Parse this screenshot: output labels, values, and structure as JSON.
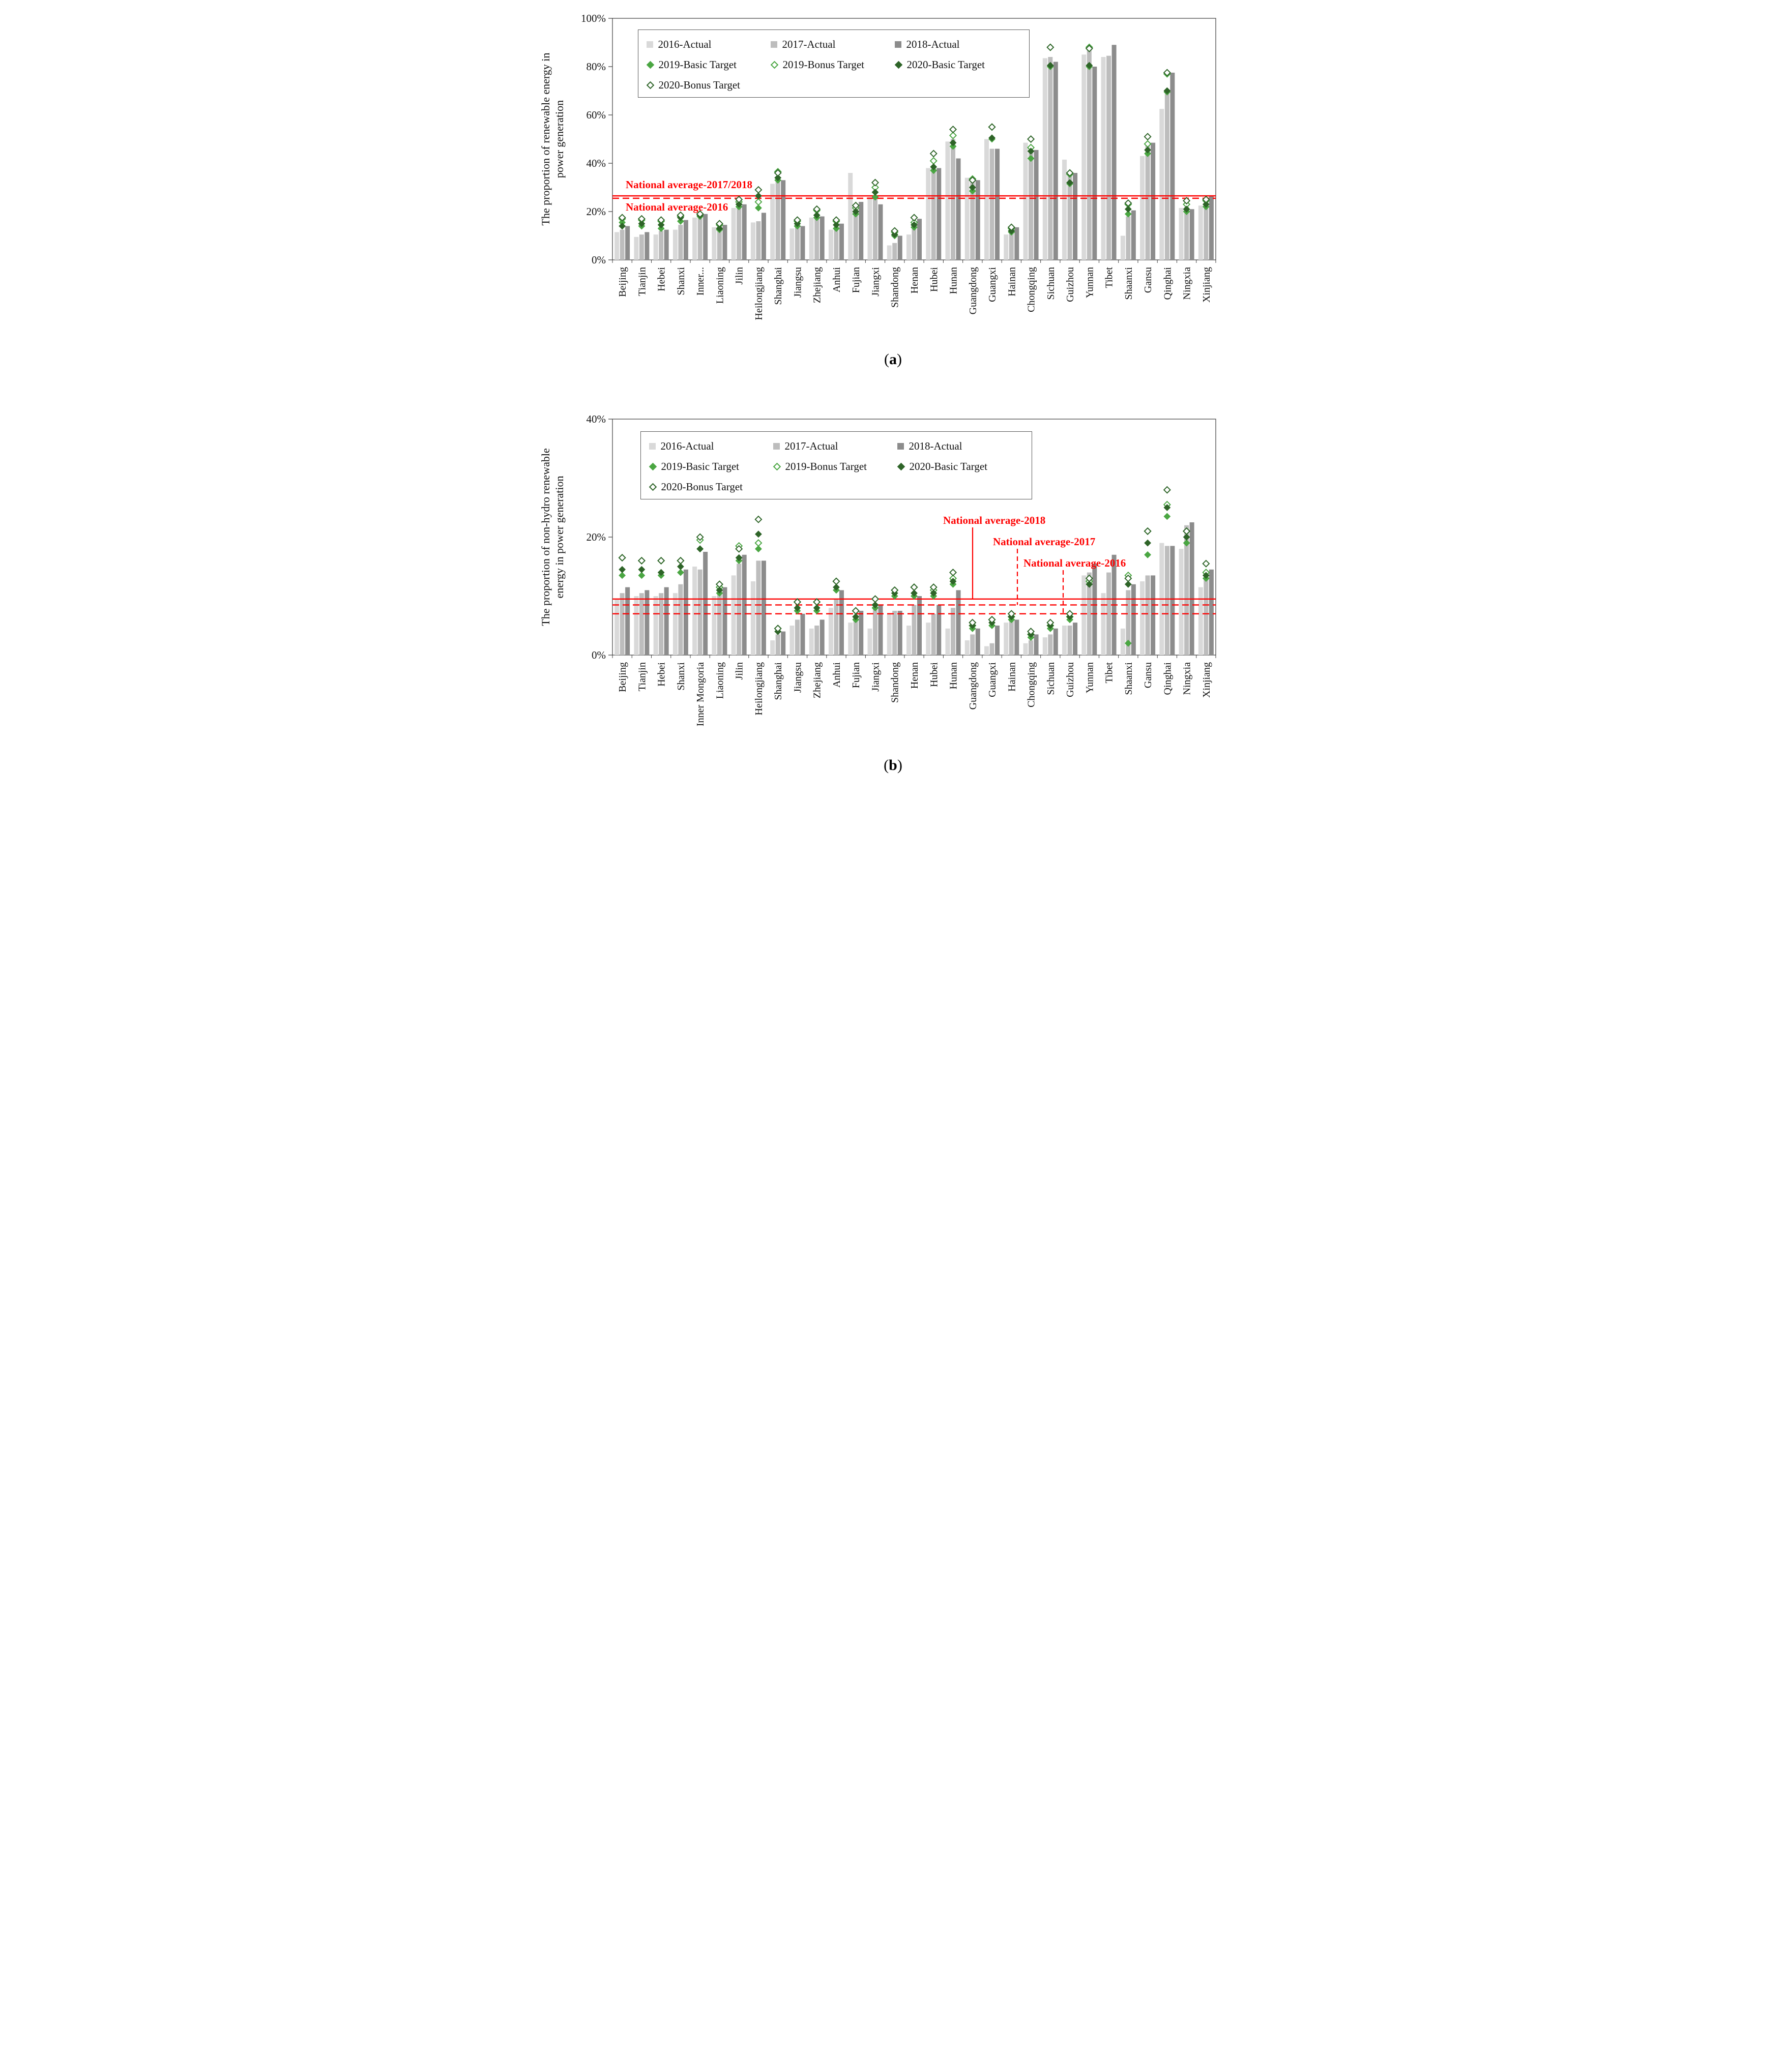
{
  "colors": {
    "bar2016": "#d9d9d9",
    "bar2017": "#bdbdbd",
    "bar2018": "#8c8c8c",
    "green2019": "#4aa642",
    "green2020": "#2e6428",
    "red": "#fe0000",
    "axis": "#3c3c3c"
  },
  "legend_items": [
    {
      "label": "2016-Actual",
      "marker": "bar",
      "color_key": "bar2016"
    },
    {
      "label": "2017-Actual",
      "marker": "bar",
      "color_key": "bar2017"
    },
    {
      "label": "2018-Actual",
      "marker": "bar",
      "color_key": "bar2018"
    },
    {
      "label": "2019-Basic Target",
      "marker": "diamond",
      "filled": true,
      "color_key": "green2019"
    },
    {
      "label": "2019-Bonus Target",
      "marker": "diamond",
      "filled": false,
      "color_key": "green2019"
    },
    {
      "label": "2020-Basic Target",
      "marker": "diamond",
      "filled": true,
      "color_key": "green2020"
    },
    {
      "label": "2020-Bonus Target",
      "marker": "diamond",
      "filled": false,
      "color_key": "green2020"
    }
  ],
  "chart_data": [
    {
      "id": "a",
      "type": "bar",
      "caption_letter": "a",
      "ylabel_lines": [
        "The proportion of renewable energy in",
        "power generation"
      ],
      "ylim": [
        0,
        100
      ],
      "yticks": [
        0,
        20,
        40,
        60,
        80,
        100
      ],
      "ytick_labels": [
        "0%",
        "20%",
        "40%",
        "60%",
        "80%",
        "100%"
      ],
      "categories": [
        "Beijing",
        "Tianjin",
        "Hebei",
        "Shanxi",
        "Inner...",
        "Liaoning",
        "Jilin",
        "Heilongjiang",
        "Shanghai",
        "Jiangsu",
        "Zhejiang",
        "Anhui",
        "Fujian",
        "Jiangxi",
        "Shandong",
        "Henan",
        "Hubei",
        "Hunan",
        "Guangdong",
        "Guangxi",
        "Hainan",
        "Chongqing",
        "Sichuan",
        "Guizhou",
        "Yunnan",
        "Tibet",
        "Shaanxi",
        "Gansu",
        "Qinghai",
        "Ningxia",
        "Xinjiang"
      ],
      "series": [
        {
          "name": "2016-Actual",
          "kind": "bar",
          "color_key": "bar2016",
          "values": [
            11.5,
            9.5,
            10.5,
            12.5,
            17.5,
            13.5,
            21.5,
            15.5,
            31.5,
            13,
            17.5,
            12.5,
            36,
            26,
            6,
            10.5,
            38,
            49,
            34,
            50,
            10.5,
            48.5,
            83.5,
            41.5,
            85,
            84,
            10,
            43,
            62.5,
            21.5,
            22.5
          ]
        },
        {
          "name": "2017-Actual",
          "kind": "bar",
          "color_key": "bar2017",
          "values": [
            12.5,
            10.5,
            12,
            14.5,
            18.5,
            14.5,
            22,
            16,
            32.5,
            13.5,
            18,
            14.5,
            22,
            25.5,
            7,
            16,
            39,
            50,
            33.5,
            46,
            12,
            44.5,
            84,
            35.5,
            87,
            84.5,
            18,
            48,
            70,
            22,
            23.5
          ]
        },
        {
          "name": "2018-Actual",
          "kind": "bar",
          "color_key": "bar2018",
          "values": [
            14,
            11.5,
            12.5,
            16.5,
            19,
            14.5,
            23,
            19.5,
            33,
            14,
            18,
            15,
            24,
            23,
            10,
            17,
            38,
            42,
            33,
            46,
            13.5,
            45.5,
            82,
            36,
            80,
            89,
            20.5,
            48.5,
            77.5,
            21,
            26.5
          ]
        },
        {
          "name": "2019-Basic Target",
          "kind": "diamond",
          "filled": true,
          "color_key": "green2019",
          "values": [
            15.5,
            14,
            13,
            16,
            18,
            12.5,
            22,
            21.5,
            33,
            14,
            17.5,
            13,
            19,
            26,
            10,
            13.5,
            37,
            47,
            28.5,
            50,
            11.5,
            42,
            80,
            31.5,
            80,
            null,
            19,
            44,
            69.5,
            20,
            22
          ]
        },
        {
          "name": "2019-Bonus Target",
          "kind": "diamond",
          "filled": false,
          "color_key": "green2019",
          "values": [
            17,
            16.5,
            16,
            18,
            19,
            14.5,
            24,
            24,
            36.5,
            16,
            20.5,
            16,
            21.5,
            30,
            11.5,
            15.5,
            41,
            51.5,
            33.5,
            55,
            13,
            46.5,
            88,
            35.5,
            88,
            null,
            23,
            48,
            77,
            23,
            24.5
          ]
        },
        {
          "name": "2020-Basic Target",
          "kind": "diamond",
          "filled": true,
          "color_key": "green2020",
          "values": [
            14,
            15,
            14.5,
            17.5,
            18.5,
            13,
            23,
            26.5,
            34,
            15,
            18.5,
            14.5,
            20,
            28,
            10.5,
            14.5,
            38.5,
            48.5,
            30,
            50.5,
            12,
            45,
            80.5,
            32,
            80.5,
            null,
            21,
            45.5,
            70,
            21,
            23
          ]
        },
        {
          "name": "2020-Bonus Target",
          "kind": "diamond",
          "filled": false,
          "color_key": "green2020",
          "values": [
            17.5,
            17,
            16.5,
            18.5,
            19,
            15,
            25,
            29,
            36,
            16.5,
            21,
            16.5,
            22.5,
            32,
            12,
            17.5,
            44,
            54,
            33,
            55,
            13.5,
            50,
            88,
            36,
            87.5,
            null,
            23.5,
            51,
            77.5,
            24.5,
            25
          ]
        }
      ],
      "ref_lines": [
        {
          "label": "National average-2017/2018",
          "value": 26.5,
          "style": "solid"
        },
        {
          "label": "National average-2016",
          "value": 25.5,
          "style": "dashed"
        }
      ]
    },
    {
      "id": "b",
      "type": "bar",
      "caption_letter": "b",
      "ylabel_lines": [
        "The proportion of non-hydro renewable",
        "energy in power generation"
      ],
      "ylim": [
        0,
        40
      ],
      "yticks": [
        0,
        20,
        40
      ],
      "ytick_labels": [
        "0%",
        "20%",
        "40%"
      ],
      "categories": [
        "Beijing",
        "Tianjin",
        "Hebei",
        "Shanxi",
        "Inner Mongoria",
        "Liaoning",
        "Jilin",
        "Heilongjiang",
        "Shanghai",
        "Jiangsu",
        "Zhejiang",
        "Anhui",
        "Fujian",
        "Jiangxi",
        "Shandong",
        "Henan",
        "Hubei",
        "Hunan",
        "Guangdong",
        "Guangxi",
        "Hainan",
        "Chongqing",
        "Sichuan",
        "Guizhou",
        "Yunnan",
        "Tibet",
        "Shaanxi",
        "Gansu",
        "Qinghai",
        "Ningxia",
        "Xinjiang"
      ],
      "series": [
        {
          "name": "2016-Actual",
          "kind": "bar",
          "color_key": "bar2016",
          "values": [
            9.5,
            10,
            10,
            10.5,
            15,
            10,
            13.5,
            12.5,
            2.5,
            5,
            4.5,
            8,
            5.5,
            4.5,
            7,
            5,
            5.5,
            4.5,
            2.5,
            1.5,
            5.5,
            2,
            3,
            5,
            13.5,
            10.5,
            4.5,
            12.5,
            19,
            18,
            11.5
          ]
        },
        {
          "name": "2017-Actual",
          "kind": "bar",
          "color_key": "bar2017",
          "values": [
            10.5,
            10.5,
            10.5,
            12,
            14.5,
            10.5,
            15.5,
            16,
            3.5,
            6,
            5,
            9.5,
            6.5,
            8,
            7.5,
            8.5,
            7,
            8,
            3.5,
            2,
            6,
            2.5,
            3.5,
            5,
            14,
            14,
            11,
            13.5,
            18.5,
            22,
            14
          ]
        },
        {
          "name": "2018-Actual",
          "kind": "bar",
          "color_key": "bar2018",
          "values": [
            11.5,
            11,
            11.5,
            14.5,
            17.5,
            11.5,
            17,
            16,
            4,
            7,
            6,
            11,
            7.5,
            8.5,
            7.5,
            10,
            8.5,
            11,
            4.5,
            5,
            6,
            3.5,
            4.5,
            5.5,
            15.5,
            17,
            12,
            13.5,
            18.5,
            22.5,
            14.5
          ]
        },
        {
          "name": "2019-Basic Target",
          "kind": "diamond",
          "filled": true,
          "color_key": "green2019",
          "values": [
            13.5,
            13.5,
            13.5,
            14,
            18,
            10.5,
            16,
            18,
            4,
            7.5,
            7.5,
            11,
            6,
            8,
            10,
            10,
            10,
            12,
            4.5,
            5,
            6,
            3,
            4.5,
            6,
            12,
            null,
            2,
            17,
            23.5,
            19,
            13
          ]
        },
        {
          "name": "2019-Bonus Target",
          "kind": "diamond",
          "filled": false,
          "color_key": "green2019",
          "values": [
            16.5,
            16,
            16,
            16,
            19.5,
            11.5,
            18.5,
            19,
            4.5,
            9,
            9,
            12.5,
            7.5,
            9.5,
            11,
            11.5,
            11,
            13,
            5,
            6,
            6.5,
            3.5,
            5,
            6.5,
            12.5,
            null,
            13.5,
            21,
            25.5,
            21,
            14
          ]
        },
        {
          "name": "2020-Basic Target",
          "kind": "diamond",
          "filled": true,
          "color_key": "green2020",
          "values": [
            14.5,
            14.5,
            14,
            15,
            18,
            11,
            16.5,
            20.5,
            4,
            8,
            8,
            11.5,
            6.5,
            8.5,
            10.5,
            10.5,
            10.5,
            12.5,
            5,
            5.5,
            6.5,
            3.5,
            5,
            6.5,
            12,
            null,
            12,
            19,
            25,
            20,
            13.5
          ]
        },
        {
          "name": "2020-Bonus Target",
          "kind": "diamond",
          "filled": false,
          "color_key": "green2020",
          "values": [
            16.5,
            16,
            16,
            16,
            20,
            12,
            18,
            23,
            4.5,
            9,
            9,
            12.5,
            7.5,
            9.5,
            11,
            11.5,
            11.5,
            14,
            5.5,
            6,
            7,
            4,
            5.5,
            7,
            13,
            null,
            13,
            21,
            28,
            21,
            15.5
          ]
        }
      ],
      "ref_lines": [
        {
          "label": "National average-2018",
          "value": 9.5,
          "style": "solid"
        },
        {
          "label": "National average-2017",
          "value": 8.5,
          "style": "dashed"
        },
        {
          "label": "National average-2016",
          "value": 7,
          "style": "dashed"
        }
      ]
    }
  ]
}
